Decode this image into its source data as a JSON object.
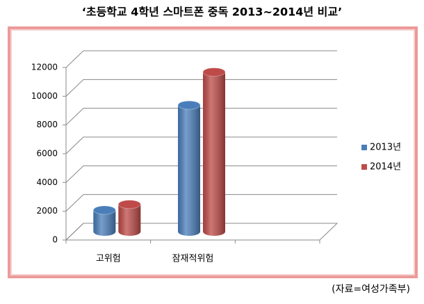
{
  "chart_data": {
    "type": "bar3d",
    "title": "‘초등학교 4학년 스마트폰 중독 2013~2014년 비교’",
    "source": "(자료=여성가족부)",
    "categories": [
      "고위험",
      "잠재적위험",
      null
    ],
    "series": [
      {
        "name": "2013년",
        "color": "#4a7ebb",
        "values": [
          1500,
          8800,
          null
        ]
      },
      {
        "name": "2014년",
        "color": "#be4b48",
        "values": [
          1900,
          11100,
          null
        ]
      }
    ],
    "ylim": [
      0,
      12000
    ],
    "yticks": [
      0,
      2000,
      4000,
      6000,
      8000,
      10000,
      12000
    ],
    "grid": true,
    "legend": "right"
  }
}
